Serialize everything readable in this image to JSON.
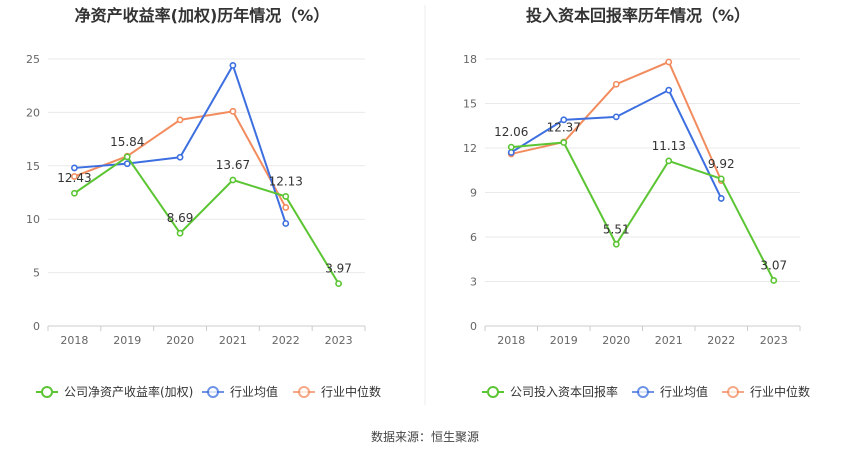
{
  "charts": [
    {
      "title": "净资产收益率(加权)历年情况（%）",
      "chart_data": {
        "type": "line",
        "title": "净资产收益率(加权)历年情况（%）",
        "categories": [
          "2018",
          "2019",
          "2020",
          "2021",
          "2022",
          "2023"
        ],
        "ylim": [
          0,
          25
        ],
        "yticks": [
          0,
          5,
          10,
          15,
          20,
          25
        ],
        "series": [
          {
            "name": "公司净资产收益率(加权)",
            "color": "#5cc534",
            "values": [
              12.43,
              15.84,
              8.69,
              13.67,
              12.13,
              3.97
            ],
            "labels": [
              "12.43",
              "15.84",
              "8.69",
              "13.67",
              "12.13",
              "3.97"
            ]
          },
          {
            "name": "行业均值",
            "color": "#3d6fe0",
            "values": [
              14.8,
              15.2,
              15.8,
              24.4,
              9.6,
              null
            ]
          },
          {
            "name": "行业中位数",
            "color": "#f28c5e",
            "values": [
              14.0,
              15.9,
              19.3,
              20.1,
              11.1,
              null
            ]
          }
        ]
      }
    },
    {
      "title": "投入资本回报率历年情况（%）",
      "chart_data": {
        "type": "line",
        "title": "投入资本回报率历年情况（%）",
        "categories": [
          "2018",
          "2019",
          "2020",
          "2021",
          "2022",
          "2023"
        ],
        "ylim": [
          0,
          18
        ],
        "yticks": [
          0,
          3,
          6,
          9,
          12,
          15,
          18
        ],
        "series": [
          {
            "name": "公司投入资本回报率",
            "color": "#5cc534",
            "values": [
              12.06,
              12.37,
              5.51,
              11.13,
              9.92,
              3.07
            ],
            "labels": [
              "12.06",
              "12.37",
              "5.51",
              "11.13",
              "9.92",
              "3.07"
            ]
          },
          {
            "name": "行业均值",
            "color": "#3d6fe0",
            "values": [
              11.7,
              13.9,
              14.1,
              15.9,
              8.6,
              null
            ]
          },
          {
            "name": "行业中位数",
            "color": "#f28c5e",
            "values": [
              11.6,
              12.4,
              16.3,
              17.8,
              9.8,
              null
            ]
          }
        ]
      }
    }
  ],
  "source": "数据来源：恒生聚源"
}
